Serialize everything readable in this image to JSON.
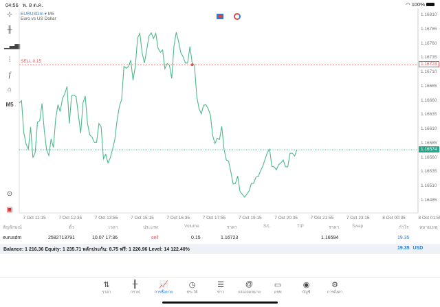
{
  "status": {
    "time": "04:56",
    "date": "พ. 8 ต.ค.",
    "battery": "100%"
  },
  "symbol": {
    "name": "EURUSDm",
    "timeframe": "M5",
    "description": "Euro vs US Dollar"
  },
  "toolbar": {
    "timeframe": "M5",
    "icons": [
      "crosshair-icon",
      "candles-icon",
      "indicators-icon",
      "settings-sliders-icon",
      "function-icon",
      "objects-icon"
    ]
  },
  "colors": {
    "line": "#4cb98a",
    "sell": "#e05555",
    "bid": "#26a68a",
    "accent": "#2b7bd6"
  },
  "trade": {
    "label": "SELL 0.15",
    "open_price": "1.16723",
    "current_price": "1.16574"
  },
  "chart_data": {
    "type": "line",
    "ylim": [
      1.16473,
      1.16822
    ],
    "yticks": [
      "1.16810",
      "1.16785",
      "1.16760",
      "1.16735",
      "1.16710",
      "1.16685",
      "1.16660",
      "1.16635",
      "1.16610",
      "1.16585",
      "1.16560",
      "1.16535",
      "1.16510",
      "1.16485"
    ],
    "xticks": [
      "7 Oct 11:15",
      "7 Oct 12:35",
      "7 Oct 13:55",
      "7 Oct 15:15",
      "7 Oct 16:35",
      "7 Oct 17:55",
      "7 Oct 19:15",
      "7 Oct 20:35",
      "7 Oct 21:55",
      "7 Oct 23:15",
      "8 Oct 00:35",
      "8 Oct 01:55"
    ],
    "sell_entry_index": 76,
    "values": [
      1.16656,
      1.1666,
      1.16604,
      1.16584,
      1.16575,
      1.16614,
      1.1656,
      1.16569,
      1.16622,
      1.16625,
      1.16655,
      1.16608,
      1.16574,
      1.16564,
      1.16593,
      1.16578,
      1.16628,
      1.16653,
      1.16641,
      1.16664,
      1.16672,
      1.16685,
      1.1662,
      1.16669,
      1.1667,
      1.16667,
      1.16635,
      1.16603,
      1.16656,
      1.16668,
      1.1662,
      1.166,
      1.16596,
      1.16587,
      1.16587,
      1.1662,
      1.16614,
      1.16558,
      1.16566,
      1.16551,
      1.1656,
      1.16575,
      1.16592,
      1.16626,
      1.1665,
      1.16662,
      1.1672,
      1.16717,
      1.1672,
      1.16731,
      1.16696,
      1.1672,
      1.1677,
      1.16778,
      1.16744,
      1.16726,
      1.16749,
      1.16773,
      1.16779,
      1.16769,
      1.16778,
      1.16752,
      1.16745,
      1.16749,
      1.16716,
      1.16725,
      1.16722,
      1.16699,
      1.16756,
      1.1678,
      1.16764,
      1.16744,
      1.16737,
      1.16726,
      1.16726,
      1.16755,
      1.16726,
      1.16722,
      1.16668,
      1.16646,
      1.16637,
      1.16652,
      1.16653,
      1.16646,
      1.16635,
      1.16599,
      1.16585,
      1.16594,
      1.16592,
      1.16615,
      1.16575,
      1.16556,
      1.16554,
      1.16535,
      1.16514,
      1.16515,
      1.16528,
      1.16501,
      1.16496,
      1.16491,
      1.16496,
      1.16502,
      1.16515,
      1.16515,
      1.16526,
      1.16527,
      1.16537,
      1.16545,
      1.16557,
      1.16569,
      1.16575,
      1.16545,
      1.16544,
      1.16539,
      1.16548,
      1.16551,
      1.16556,
      1.16544,
      1.16544,
      1.16568,
      1.16568,
      1.16563,
      1.16574
    ]
  },
  "table": {
    "headers": [
      "สัญลักษณ์",
      "ตั๋ว",
      "เวลา",
      "ประเภท",
      "Volume",
      "ราคา",
      "S/L",
      "T/P",
      "ราคา",
      "Swap",
      "กำไร",
      "หมายเหตุ"
    ],
    "row": {
      "symbol": "eurusdm",
      "ticket": "2582713791",
      "time": "10.07 17:36",
      "type": "sell",
      "volume": "0.15",
      "open": "1.16723",
      "sl": "",
      "tp": "",
      "price": "1.16594",
      "swap": "",
      "profit": "19.35",
      "comment": ""
    }
  },
  "balance": {
    "text": "Balance: 1 216.36 Equity: 1 235.71 หลักประกัน: 8.75 ฟรี: 1 226.96 Level: 14 122.40%",
    "profit": "19.35",
    "currency": "USD"
  },
  "nav": [
    {
      "label": "ราคา",
      "icon": "⇅"
    },
    {
      "label": "กราฟ",
      "icon": "╫"
    },
    {
      "label": "การซื้อขาย",
      "icon": "📈"
    },
    {
      "label": "ประวัติ",
      "icon": "◷"
    },
    {
      "label": "ข่าว",
      "icon": "☰"
    },
    {
      "label": "กล่องจดหมาย",
      "icon": "@"
    },
    {
      "label": "แชท",
      "icon": "▭"
    },
    {
      "label": "บัญชี",
      "icon": "◉"
    },
    {
      "label": "การตั้งค่า",
      "icon": "⚙"
    }
  ]
}
